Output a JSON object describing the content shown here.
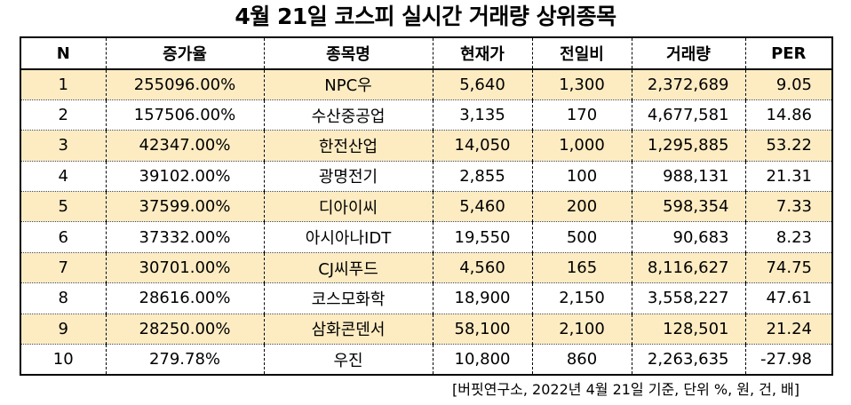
{
  "title": "4월 21일 코스피 실시간 거래량 상위종목",
  "table": {
    "headers": [
      "N",
      "증가율",
      "종목명",
      "현재가",
      "전일비",
      "거래량",
      "PER"
    ],
    "rows": [
      {
        "n": "1",
        "rate": "255096.00%",
        "name": "NPC우",
        "price": "5,640",
        "change": "1,300",
        "volume": "2,372,689",
        "per": "9.05"
      },
      {
        "n": "2",
        "rate": "157506.00%",
        "name": "수산중공업",
        "price": "3,135",
        "change": "170",
        "volume": "4,677,581",
        "per": "14.86"
      },
      {
        "n": "3",
        "rate": "42347.00%",
        "name": "한전산업",
        "price": "14,050",
        "change": "1,000",
        "volume": "1,295,885",
        "per": "53.22"
      },
      {
        "n": "4",
        "rate": "39102.00%",
        "name": "광명전기",
        "price": "2,855",
        "change": "100",
        "volume": "988,131",
        "per": "21.31"
      },
      {
        "n": "5",
        "rate": "37599.00%",
        "name": "디아이씨",
        "price": "5,460",
        "change": "200",
        "volume": "598,354",
        "per": "7.33"
      },
      {
        "n": "6",
        "rate": "37332.00%",
        "name": "아시아나IDT",
        "price": "19,550",
        "change": "500",
        "volume": "90,683",
        "per": "8.23"
      },
      {
        "n": "7",
        "rate": "30701.00%",
        "name": "CJ씨푸드",
        "price": "4,560",
        "change": "165",
        "volume": "8,116,627",
        "per": "74.75"
      },
      {
        "n": "8",
        "rate": "28616.00%",
        "name": "코스모화학",
        "price": "18,900",
        "change": "2,150",
        "volume": "3,558,227",
        "per": "47.61"
      },
      {
        "n": "9",
        "rate": "28250.00%",
        "name": "삼화콘덴서",
        "price": "58,100",
        "change": "2,100",
        "volume": "128,501",
        "per": "21.24"
      },
      {
        "n": "10",
        "rate": "279.78%",
        "name": "우진",
        "price": "10,800",
        "change": "860",
        "volume": "2,263,635",
        "per": "-27.98"
      }
    ]
  },
  "source": "[버핏연구소, 2022년 4월 21일 기준, 단위 %, 원, 건, 배]",
  "colors": {
    "odd_row": "#fdecc2",
    "even_row": "#ffffff",
    "border": "#000000"
  }
}
